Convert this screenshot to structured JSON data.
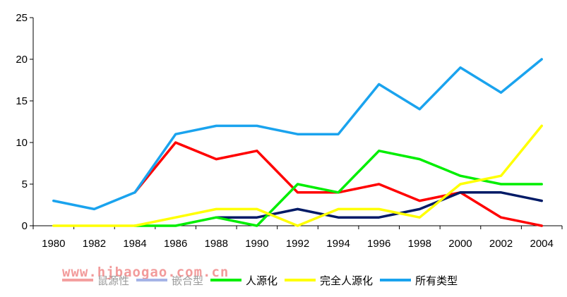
{
  "chart_data": {
    "type": "line",
    "x": [
      "1980",
      "1982",
      "1984",
      "1986",
      "1988",
      "1990",
      "1992",
      "1994",
      "1996",
      "1998",
      "2000",
      "2002",
      "2004"
    ],
    "ylim": [
      0,
      25
    ],
    "yticks": [
      "0",
      "5",
      "10",
      "15",
      "20",
      "25"
    ],
    "grid": false,
    "legend_position": "bottom",
    "series": [
      {
        "name": "鼠源性",
        "color": "#ff0000",
        "values": [
          null,
          null,
          4,
          10,
          8,
          9,
          4,
          4,
          5,
          3,
          4,
          1,
          0
        ]
      },
      {
        "name": "嵌合型",
        "color": "#001a66",
        "values": [
          null,
          null,
          null,
          null,
          1,
          1,
          2,
          1,
          1,
          2,
          4,
          4,
          3
        ]
      },
      {
        "name": "人源化",
        "color": "#00ee00",
        "values": [
          null,
          null,
          0,
          0,
          1,
          0,
          5,
          4,
          9,
          8,
          6,
          5,
          5
        ]
      },
      {
        "name": "完全人源化",
        "color": "#ffff00",
        "values": [
          0,
          0,
          0,
          1,
          2,
          2,
          0,
          2,
          2,
          1,
          5,
          6,
          12
        ]
      },
      {
        "name": "所有类型",
        "color": "#1aa3ee",
        "values": [
          3,
          2,
          4,
          11,
          12,
          12,
          11,
          11,
          17,
          14,
          19,
          16,
          20
        ]
      }
    ]
  },
  "watermark": "www.hjbaogao.com.cn"
}
